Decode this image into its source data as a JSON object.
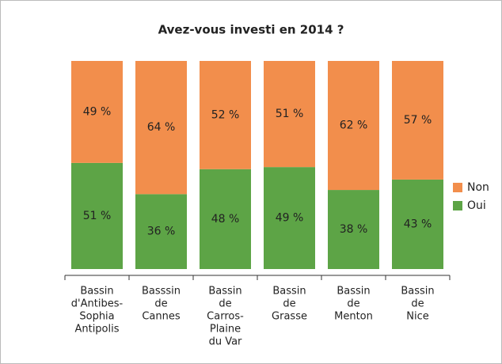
{
  "chart_data": {
    "type": "stacked-bar",
    "title": "Avez-vous investi en 2014 ?",
    "categories": [
      [
        "Bassin",
        "d'Antibes-",
        "Sophia",
        "Antipolis"
      ],
      [
        "Basssin",
        "de",
        "Cannes"
      ],
      [
        "Bassin",
        "de",
        "Carros-",
        "Plaine",
        "du Var"
      ],
      [
        "Bassin",
        "de",
        "Grasse"
      ],
      [
        "Bassin",
        "de",
        "Menton"
      ],
      [
        "Bassin",
        "de",
        "Nice"
      ]
    ],
    "series": [
      {
        "name": "Oui",
        "color": "#5da446",
        "values": [
          51,
          36,
          48,
          49,
          38,
          43
        ],
        "value_labels": [
          "51 %",
          "36 %",
          "48 %",
          "49 %",
          "38 %",
          "43 %"
        ]
      },
      {
        "name": "Non",
        "color": "#f28e4c",
        "values": [
          49,
          64,
          52,
          51,
          62,
          57
        ],
        "value_labels": [
          "49 %",
          "64 %",
          "52 %",
          "51 %",
          "62 %",
          "57 %"
        ]
      }
    ],
    "ylim": [
      0,
      100
    ],
    "legend": "right"
  }
}
